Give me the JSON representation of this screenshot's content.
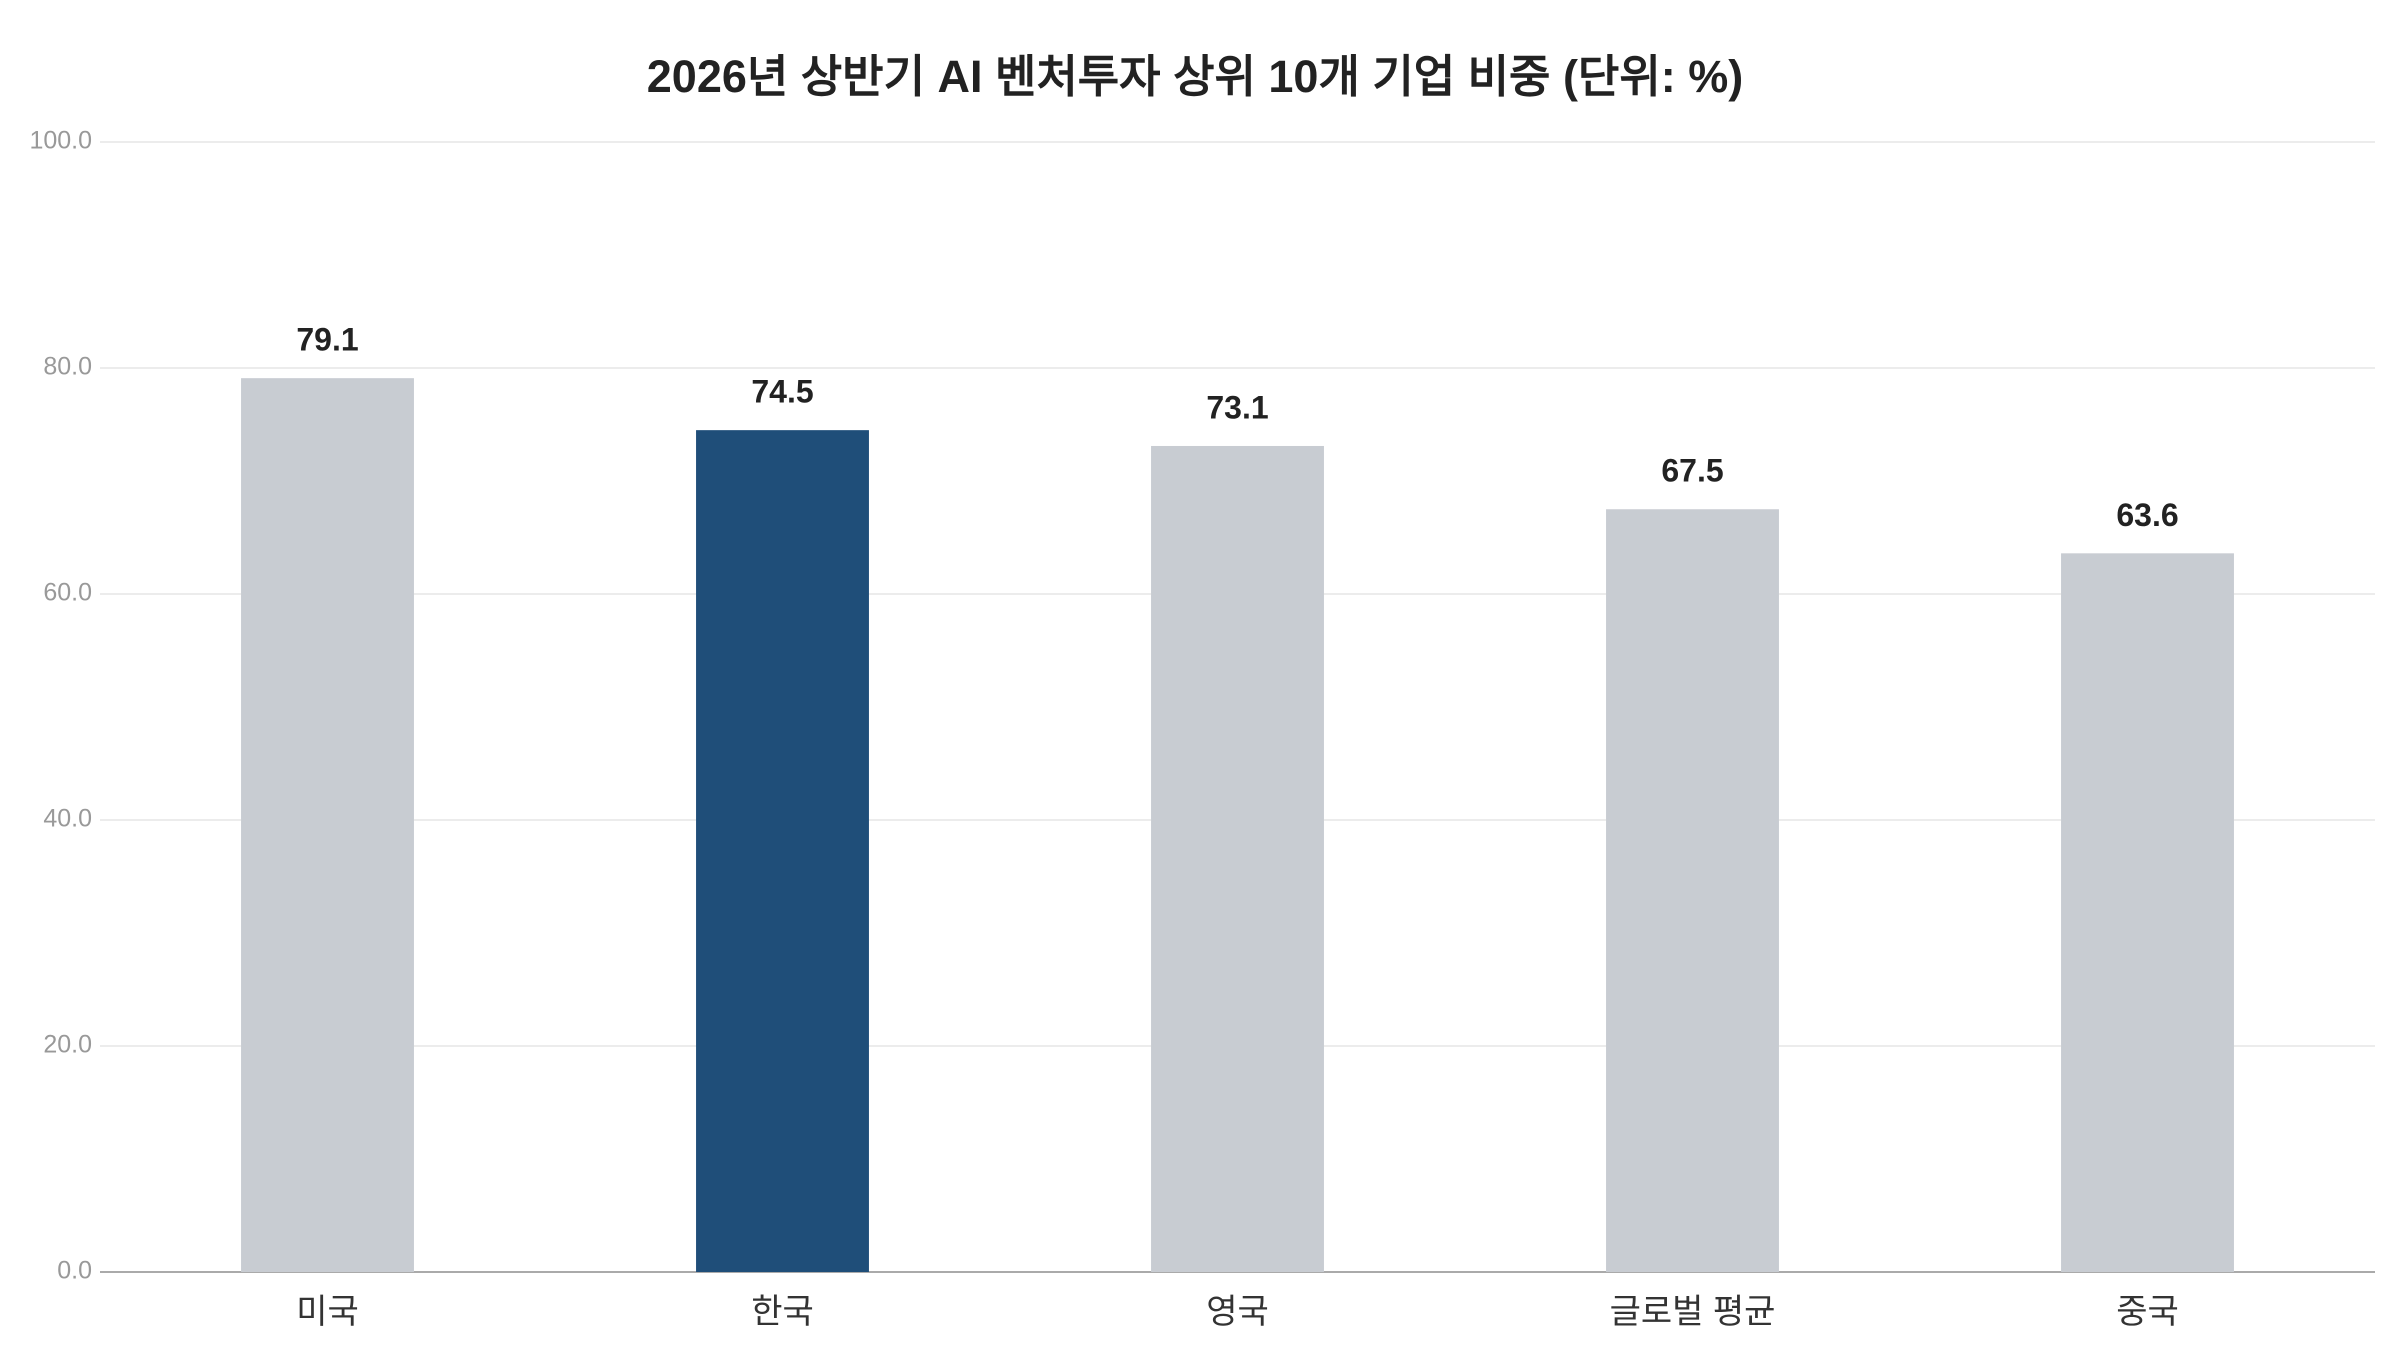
{
  "chart_data": {
    "type": "bar",
    "title": "2026년 상반기 AI 벤처투자 상위 10개 기업 비중 (단위: %)",
    "categories": [
      "미국",
      "한국",
      "영국",
      "글로벌 평균",
      "중국"
    ],
    "values": [
      79.1,
      74.5,
      73.1,
      67.5,
      63.6
    ],
    "colors": [
      "#c8ccd2",
      "#1f4e79",
      "#c8ccd2",
      "#c8ccd2",
      "#c8ccd2"
    ],
    "ylim": [
      0,
      100
    ],
    "yticks": [
      {
        "value": 0,
        "label": "0.0"
      },
      {
        "value": 20,
        "label": "20.0"
      },
      {
        "value": 40,
        "label": "40.0"
      },
      {
        "value": 60,
        "label": "60.0"
      },
      {
        "value": 80,
        "label": "80.0"
      },
      {
        "value": 100,
        "label": "100.0"
      }
    ],
    "grid": true
  }
}
